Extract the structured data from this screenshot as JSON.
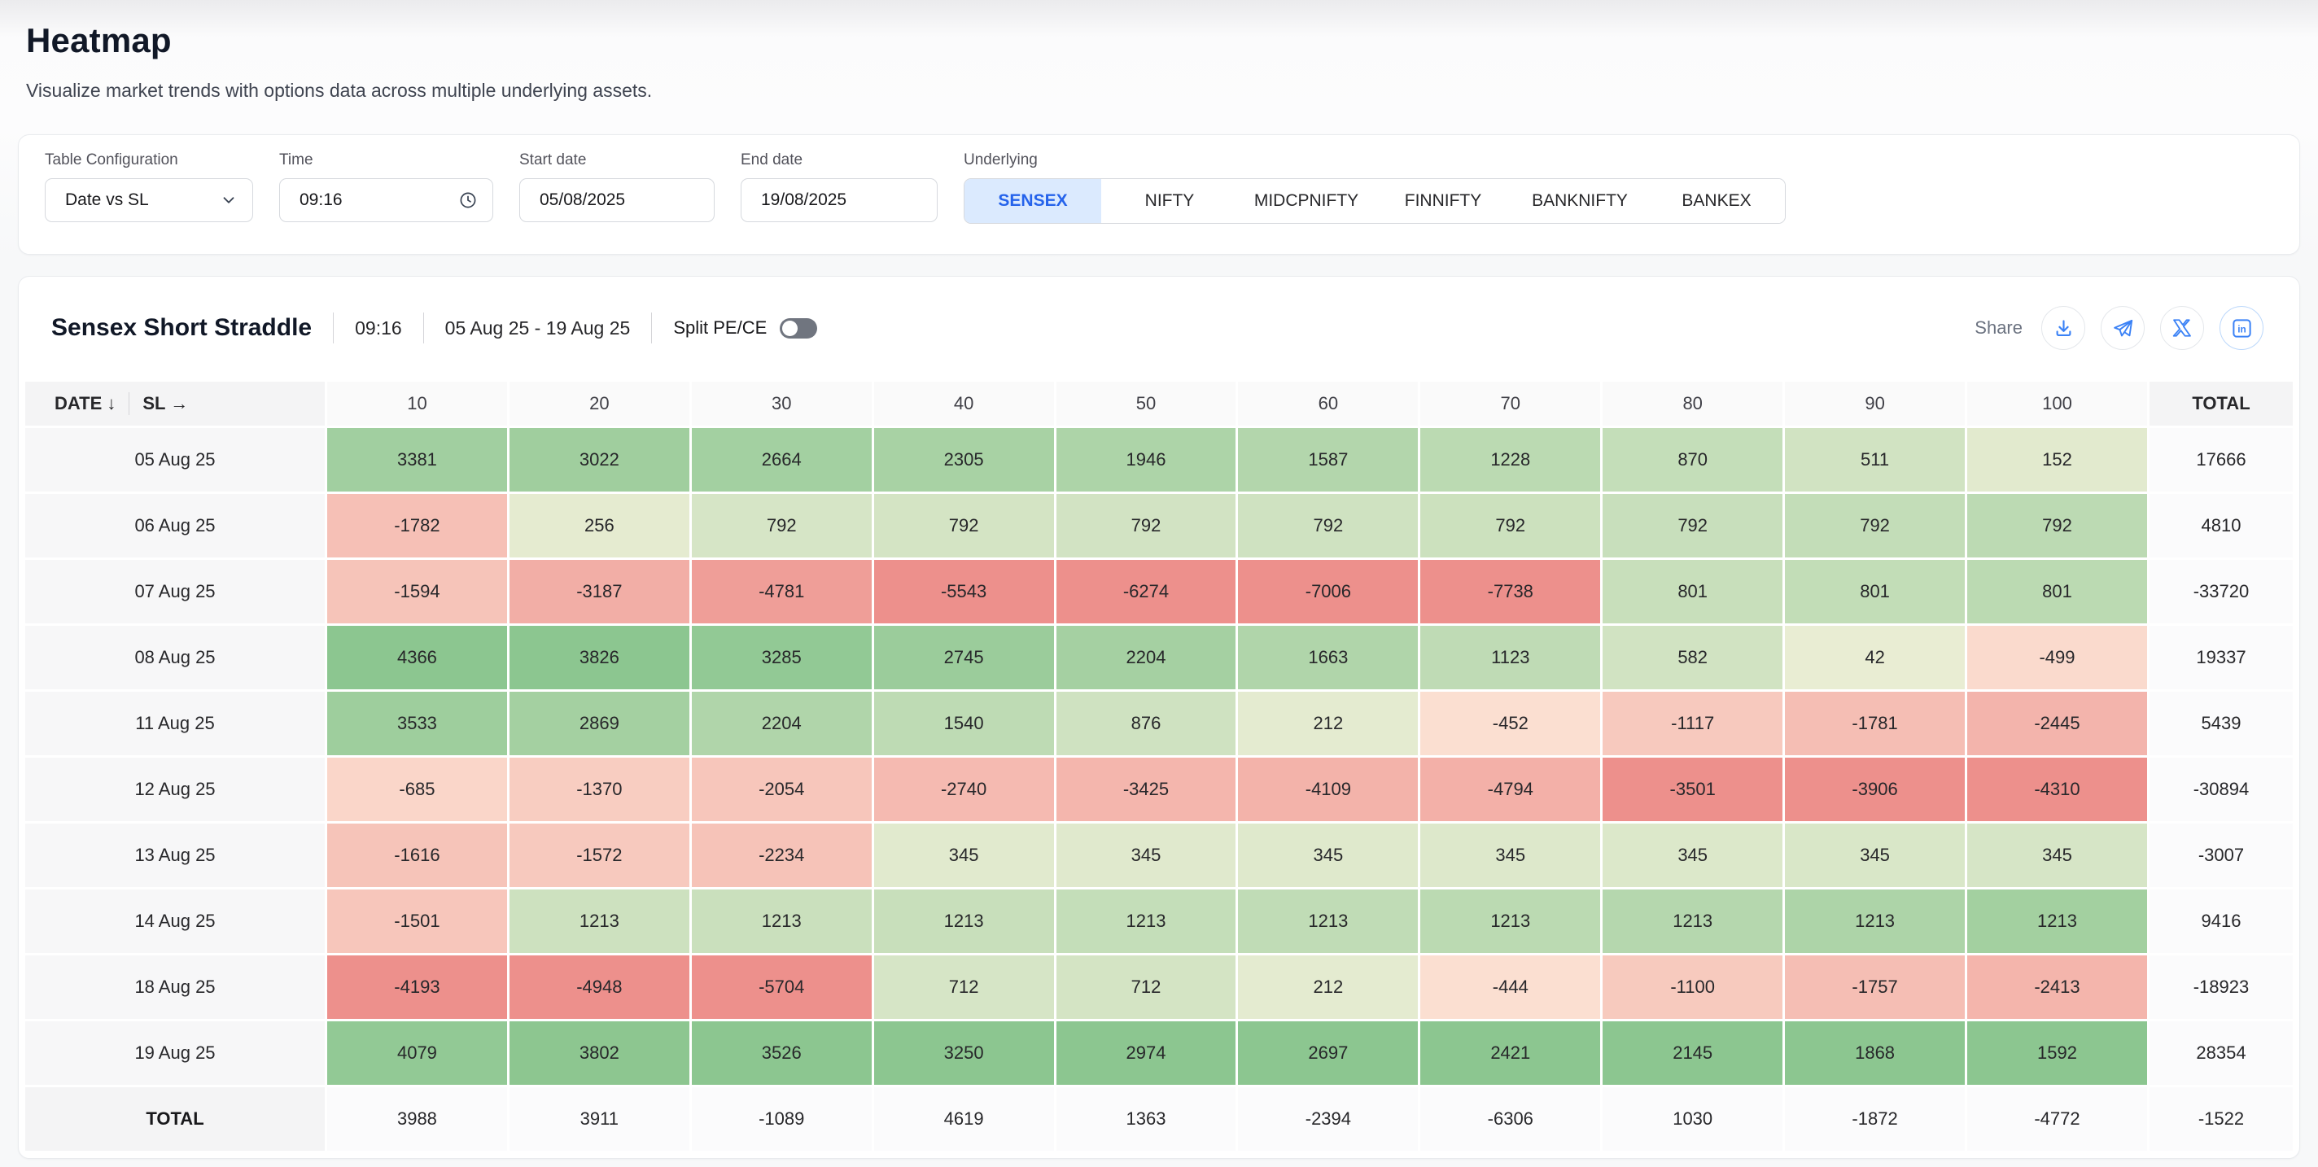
{
  "page": {
    "title": "Heatmap",
    "subtitle": "Visualize market trends with options data across multiple underlying assets."
  },
  "filters": {
    "table_config": {
      "label": "Table Configuration",
      "value": "Date vs SL"
    },
    "time": {
      "label": "Time",
      "value": "09:16"
    },
    "start_date": {
      "label": "Start date",
      "value": "05/08/2025"
    },
    "end_date": {
      "label": "End date",
      "value": "19/08/2025"
    },
    "underlying": {
      "label": "Underlying",
      "options": [
        "SENSEX",
        "NIFTY",
        "MIDCPNIFTY",
        "FINNIFTY",
        "BANKNIFTY",
        "BANKEX"
      ],
      "selected": "SENSEX"
    }
  },
  "card": {
    "title": "Sensex Short Straddle",
    "time": "09:16",
    "date_range": "05 Aug 25 - 19 Aug 25",
    "split_label": "Split PE/CE",
    "split_on": false,
    "share_label": "Share",
    "share_icons": [
      "download-icon",
      "telegram-icon",
      "x-icon",
      "linkedin-icon"
    ]
  },
  "ui_colors": {
    "accent_blue": "#2563eb",
    "icon_blue": "#3b82f6",
    "active_tab_bg": "#dbeafe"
  },
  "chart_data": {
    "type": "heatmap",
    "row_axis_label": "DATE ↓",
    "col_axis_label": "SL →",
    "columns": [
      "10",
      "20",
      "30",
      "40",
      "50",
      "60",
      "70",
      "80",
      "90",
      "100"
    ],
    "total_label": "TOTAL",
    "rows": [
      {
        "date": "05 Aug 25",
        "values": [
          3381,
          3022,
          2664,
          2305,
          1946,
          1587,
          1228,
          870,
          511,
          152
        ],
        "total": 17666
      },
      {
        "date": "06 Aug 25",
        "values": [
          -1782,
          256,
          792,
          792,
          792,
          792,
          792,
          792,
          792,
          792
        ],
        "total": 4810
      },
      {
        "date": "07 Aug 25",
        "values": [
          -1594,
          -3187,
          -4781,
          -5543,
          -6274,
          -7006,
          -7738,
          801,
          801,
          801
        ],
        "total": -33720
      },
      {
        "date": "08 Aug 25",
        "values": [
          4366,
          3826,
          3285,
          2745,
          2204,
          1663,
          1123,
          582,
          42,
          -499
        ],
        "total": 19337
      },
      {
        "date": "11 Aug 25",
        "values": [
          3533,
          2869,
          2204,
          1540,
          876,
          212,
          -452,
          -1117,
          -1781,
          -2445
        ],
        "total": 5439
      },
      {
        "date": "12 Aug 25",
        "values": [
          -685,
          -1370,
          -2054,
          -2740,
          -3425,
          -4109,
          -4794,
          -3501,
          -3906,
          -4310
        ],
        "total": -30894
      },
      {
        "date": "13 Aug 25",
        "values": [
          -1616,
          -1572,
          -2234,
          345,
          345,
          345,
          345,
          345,
          345,
          345
        ],
        "total": -3007
      },
      {
        "date": "14 Aug 25",
        "values": [
          -1501,
          1213,
          1213,
          1213,
          1213,
          1213,
          1213,
          1213,
          1213,
          1213
        ],
        "total": 9416
      },
      {
        "date": "18 Aug 25",
        "values": [
          -4193,
          -4948,
          -5704,
          712,
          712,
          212,
          -444,
          -1100,
          -1757,
          -2413
        ],
        "total": -18923
      },
      {
        "date": "19 Aug 25",
        "values": [
          4079,
          3802,
          3526,
          3250,
          2974,
          2697,
          2421,
          2145,
          1868,
          1592
        ],
        "total": 28354
      }
    ],
    "column_totals": [
      3988,
      3911,
      -1089,
      4619,
      1363,
      -2394,
      -6306,
      1030,
      -1872,
      -4772
    ],
    "grand_total": -1522,
    "colors": {
      "scale": "per-column",
      "near_zero_positive": "#ebeed5",
      "positive_max": "#8cc690",
      "near_zero_negative": "#fce4d5",
      "negative_max": "#ed908c"
    }
  }
}
